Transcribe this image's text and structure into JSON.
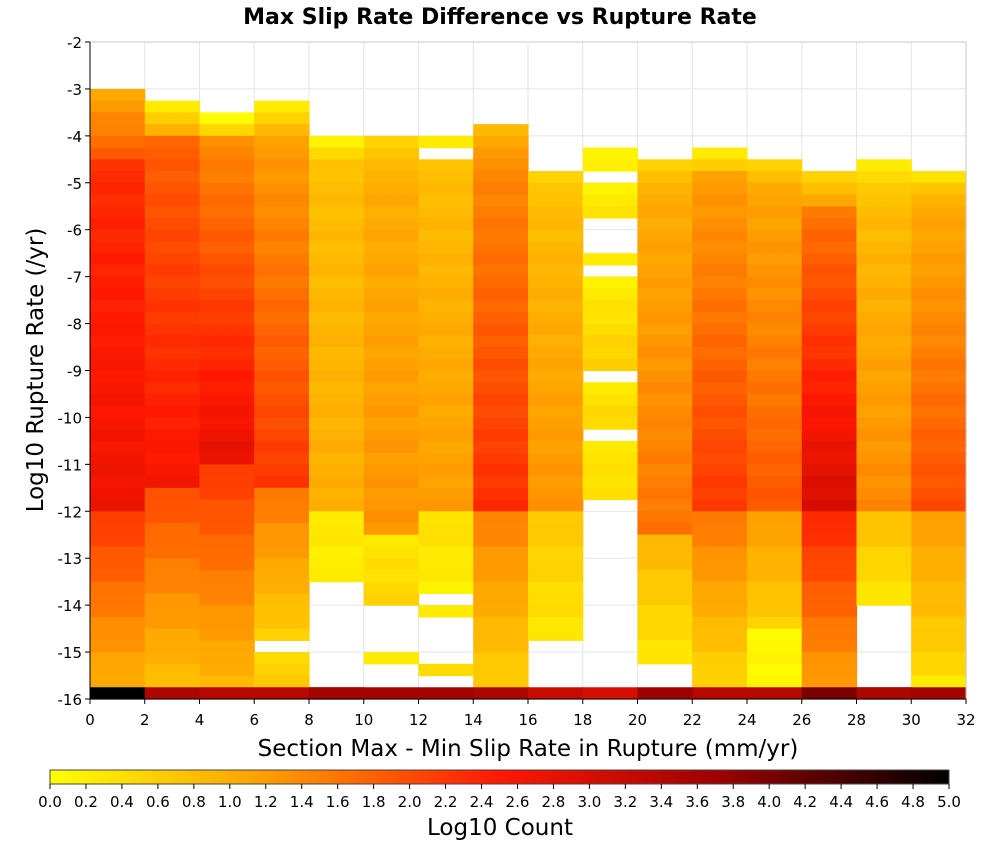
{
  "chart_data": {
    "type": "heatmap",
    "title": "Max Slip Rate Difference vs Rupture Rate",
    "xlabel": "Section Max - Min Slip Rate in Rupture (mm/yr)",
    "ylabel": "Log10 Rupture Rate (/yr)",
    "xlim": [
      0,
      32
    ],
    "ylim": [
      -16,
      -2
    ],
    "x_ticks": [
      "0",
      "2",
      "4",
      "6",
      "8",
      "10",
      "12",
      "14",
      "16",
      "18",
      "20",
      "22",
      "24",
      "26",
      "28",
      "30",
      "32"
    ],
    "y_ticks": [
      "-2",
      "-3",
      "-4",
      "-5",
      "-6",
      "-7",
      "-8",
      "-9",
      "-10",
      "-11",
      "-12",
      "-13",
      "-14",
      "-15",
      "-16"
    ],
    "x_bin_width": 2,
    "y_bin_height": 0.25,
    "grid": true,
    "colorbar": {
      "label": "Log10 Count",
      "min": 0.0,
      "max": 5.0,
      "ticks": [
        "0.0",
        "0.2",
        "0.4",
        "0.6",
        "0.8",
        "1.0",
        "1.2",
        "1.4",
        "1.6",
        "1.8",
        "2.0",
        "2.2",
        "2.4",
        "2.6",
        "2.8",
        "3.0",
        "3.2",
        "3.4",
        "3.6",
        "3.8",
        "4.0",
        "4.2",
        "4.4",
        "4.6",
        "4.8",
        "5.0"
      ],
      "colors": [
        "#ffff00",
        "#ff9900",
        "#ff1800",
        "#990000",
        "#000000"
      ]
    },
    "columns": [
      {
        "x": 1,
        "segments": [
          {
            "from": -3.0,
            "to": -4.5,
            "v0": 1.1,
            "v1": 1.8
          },
          {
            "from": -4.5,
            "to": -12.0,
            "v0": 2.3,
            "v1": 2.7
          },
          {
            "from": -12.0,
            "to": -15.75,
            "v0": 2.2,
            "v1": 1.0
          }
        ]
      },
      {
        "x": 3,
        "segments": [
          {
            "from": -3.25,
            "to": -4.0,
            "v0": 0.3,
            "v1": 0.9
          },
          {
            "from": -4.0,
            "to": -11.5,
            "v0": 1.8,
            "v1": 2.6
          },
          {
            "from": -11.5,
            "to": -15.75,
            "v0": 2.0,
            "v1": 0.8
          }
        ]
      },
      {
        "x": 5,
        "segments": [
          {
            "from": -3.5,
            "to": -4.0,
            "v0": 0.1,
            "v1": 0.5
          },
          {
            "from": -4.0,
            "to": -11.0,
            "v0": 1.4,
            "v1": 2.8
          },
          {
            "from": -11.0,
            "to": -15.75,
            "v0": 2.2,
            "v1": 0.9
          }
        ]
      },
      {
        "x": 7,
        "segments": [
          {
            "from": -3.25,
            "to": -4.0,
            "v0": 0.3,
            "v1": 0.8
          },
          {
            "from": -4.0,
            "to": -11.5,
            "v0": 1.2,
            "v1": 2.2
          },
          {
            "from": -11.5,
            "to": -14.75,
            "v0": 1.6,
            "v1": 0.6
          },
          {
            "from": -15.0,
            "to": -15.75,
            "v0": 0.5,
            "v1": 0.6
          }
        ]
      },
      {
        "x": 9,
        "segments": [
          {
            "from": -4.0,
            "to": -4.75,
            "v0": 0.2,
            "v1": 0.7
          },
          {
            "from": -4.75,
            "to": -12.0,
            "v0": 0.8,
            "v1": 1.0
          },
          {
            "from": -12.0,
            "to": -13.5,
            "v0": 0.3,
            "v1": 0.2
          },
          {
            "from": -15.75,
            "to": -16.0,
            "v0": 3.6,
            "v1": 3.6
          }
        ]
      },
      {
        "x": 11,
        "segments": [
          {
            "from": -4.0,
            "to": -4.75,
            "v0": 0.6,
            "v1": 0.8
          },
          {
            "from": -4.75,
            "to": -12.5,
            "v0": 1.0,
            "v1": 1.3
          },
          {
            "from": -12.5,
            "to": -14.0,
            "v0": 0.3,
            "v1": 0.5
          },
          {
            "from": -15.0,
            "to": -15.25,
            "v0": 0.3,
            "v1": 0.3
          }
        ]
      },
      {
        "x": 13,
        "segments": [
          {
            "from": -4.0,
            "to": -4.25,
            "v0": 0.3,
            "v1": 0.3
          },
          {
            "from": -4.5,
            "to": -12.0,
            "v0": 0.8,
            "v1": 1.2
          },
          {
            "from": -12.0,
            "to": -13.75,
            "v0": 0.4,
            "v1": 0.2
          },
          {
            "from": -14.0,
            "to": -14.25,
            "v0": 0.3,
            "v1": 0.3
          },
          {
            "from": -15.25,
            "to": -15.5,
            "v0": 0.5,
            "v1": 0.5
          }
        ]
      },
      {
        "x": 15,
        "segments": [
          {
            "from": -3.75,
            "to": -4.5,
            "v0": 0.9,
            "v1": 1.2
          },
          {
            "from": -4.5,
            "to": -12.0,
            "v0": 1.4,
            "v1": 2.3
          },
          {
            "from": -12.0,
            "to": -15.75,
            "v0": 1.5,
            "v1": 0.6
          }
        ]
      },
      {
        "x": 17,
        "segments": [
          {
            "from": -4.75,
            "to": -5.25,
            "v0": 0.6,
            "v1": 0.7
          },
          {
            "from": -5.25,
            "to": -12.0,
            "v0": 0.8,
            "v1": 1.3
          },
          {
            "from": -12.0,
            "to": -14.75,
            "v0": 0.7,
            "v1": 0.3
          }
        ]
      },
      {
        "x": 19,
        "segments": [
          {
            "from": -4.25,
            "to": -4.75,
            "v0": 0.2,
            "v1": 0.2
          },
          {
            "from": -5.0,
            "to": -5.75,
            "v0": 0.2,
            "v1": 0.3
          },
          {
            "from": -6.5,
            "to": -6.75,
            "v0": 0.3,
            "v1": 0.3
          },
          {
            "from": -7.0,
            "to": -9.0,
            "v0": 0.2,
            "v1": 0.6
          },
          {
            "from": -9.25,
            "to": -10.25,
            "v0": 0.3,
            "v1": 0.5
          },
          {
            "from": -10.5,
            "to": -11.75,
            "v0": 0.3,
            "v1": 0.4
          }
        ]
      },
      {
        "x": 21,
        "segments": [
          {
            "from": -4.5,
            "to": -5.0,
            "v0": 0.6,
            "v1": 0.8
          },
          {
            "from": -5.0,
            "to": -12.5,
            "v0": 1.0,
            "v1": 1.6
          },
          {
            "from": -12.5,
            "to": -15.25,
            "v0": 0.9,
            "v1": 0.3
          }
        ]
      },
      {
        "x": 23,
        "segments": [
          {
            "from": -4.25,
            "to": -4.75,
            "v0": 0.3,
            "v1": 0.6
          },
          {
            "from": -4.75,
            "to": -12.0,
            "v0": 1.2,
            "v1": 2.2
          },
          {
            "from": -12.0,
            "to": -15.75,
            "v0": 1.6,
            "v1": 0.5
          }
        ]
      },
      {
        "x": 25,
        "segments": [
          {
            "from": -4.5,
            "to": -5.0,
            "v0": 0.6,
            "v1": 0.8
          },
          {
            "from": -5.0,
            "to": -12.0,
            "v0": 1.1,
            "v1": 1.9
          },
          {
            "from": -12.0,
            "to": -14.5,
            "v0": 1.2,
            "v1": 0.6
          },
          {
            "from": -14.5,
            "to": -15.75,
            "v0": 0.1,
            "v1": 0.1
          }
        ]
      },
      {
        "x": 27,
        "segments": [
          {
            "from": -4.75,
            "to": -5.5,
            "v0": 0.6,
            "v1": 1.0
          },
          {
            "from": -5.5,
            "to": -12.0,
            "v0": 1.6,
            "v1": 3.0
          },
          {
            "from": -12.0,
            "to": -15.75,
            "v0": 2.4,
            "v1": 1.2
          }
        ]
      },
      {
        "x": 29,
        "segments": [
          {
            "from": -4.5,
            "to": -5.25,
            "v0": 0.3,
            "v1": 0.6
          },
          {
            "from": -5.25,
            "to": -12.0,
            "v0": 0.8,
            "v1": 1.4
          },
          {
            "from": -12.0,
            "to": -14.0,
            "v0": 0.8,
            "v1": 0.3
          },
          {
            "from": -15.75,
            "to": -16.0,
            "v0": 3.5,
            "v1": 3.5
          }
        ]
      },
      {
        "x": 31,
        "segments": [
          {
            "from": -4.75,
            "to": -5.25,
            "v0": 0.4,
            "v1": 0.7
          },
          {
            "from": -5.25,
            "to": -12.0,
            "v0": 1.0,
            "v1": 2.0
          },
          {
            "from": -12.0,
            "to": -15.5,
            "v0": 1.2,
            "v1": 0.5
          },
          {
            "from": -15.5,
            "to": -15.75,
            "v0": 0.3,
            "v1": 0.3
          }
        ]
      }
    ],
    "bottom_row": {
      "y_from": -15.75,
      "y_to": -16.0,
      "values": [
        5.0,
        3.5,
        3.4,
        3.4,
        3.6,
        3.6,
        3.6,
        3.5,
        3.2,
        3.0,
        3.7,
        3.4,
        3.4,
        4.0,
        3.5,
        3.6
      ]
    }
  }
}
